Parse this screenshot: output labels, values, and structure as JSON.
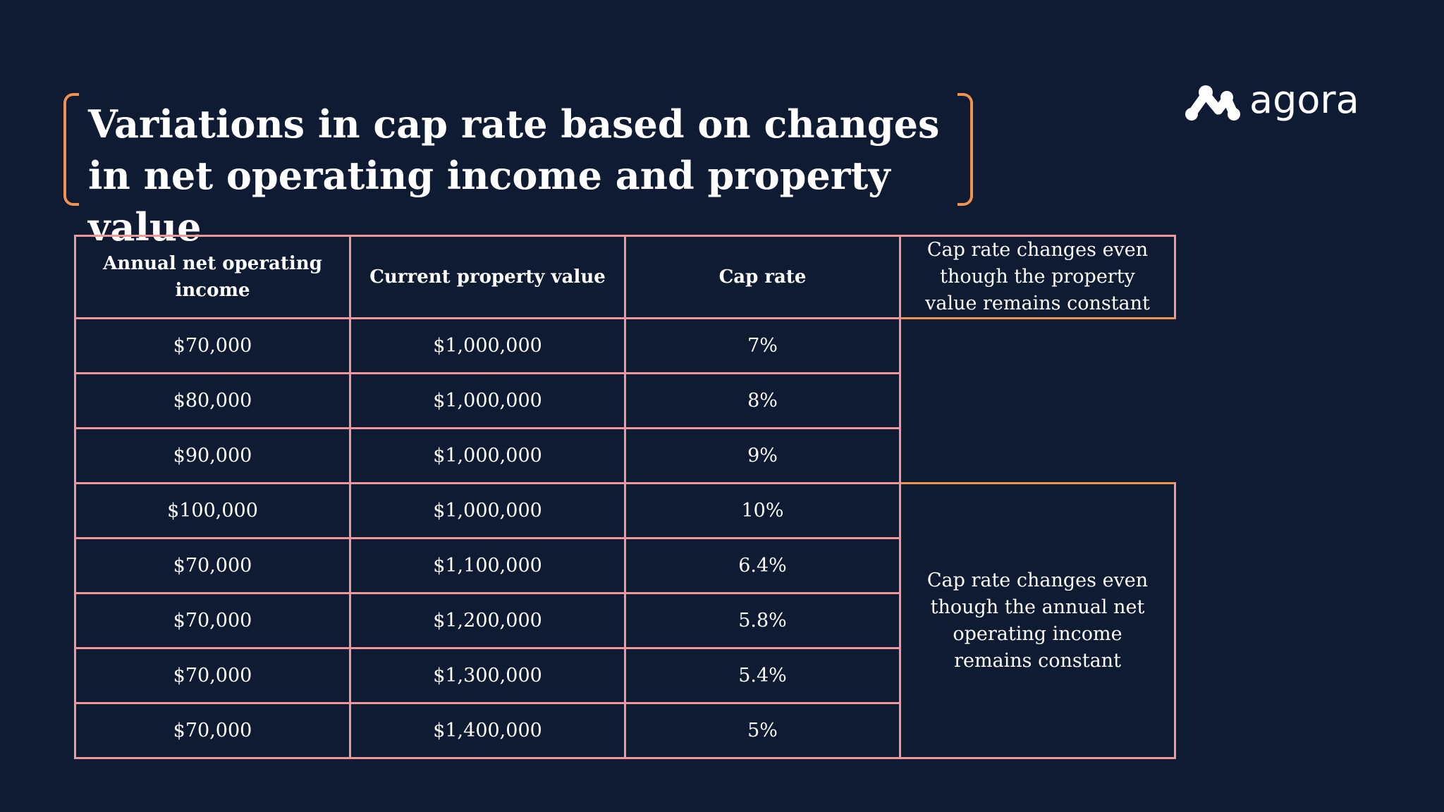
{
  "title": "Variations in cap rate based on changes in net operating income and property value",
  "logo": {
    "text": "agora",
    "icon": "agora-logo-icon"
  },
  "colors": {
    "background": "#0f1b33",
    "bracket": "#f0934e",
    "table_border": "#f0979a",
    "text": "#ffffff"
  },
  "table": {
    "headers": [
      "Annual net operating income",
      "Current property value",
      "Cap rate"
    ],
    "rows": [
      [
        "$70,000",
        "$1,000,000",
        "7%"
      ],
      [
        "$80,000",
        "$1,000,000",
        "8%"
      ],
      [
        "$90,000",
        "$1,000,000",
        "9%"
      ],
      [
        "$100,000",
        "$1,000,000",
        "10%"
      ],
      [
        "$70,000",
        "$1,100,000",
        "6.4%"
      ],
      [
        "$70,000",
        "$1,200,000",
        "5.8%"
      ],
      [
        "$70,000",
        "$1,300,000",
        "5.4%"
      ],
      [
        "$70,000",
        "$1,400,000",
        "5%"
      ]
    ],
    "notes": [
      "Cap rate changes even though the property value remains constant",
      "Cap rate changes even though the annual net operating income remains constant"
    ]
  }
}
